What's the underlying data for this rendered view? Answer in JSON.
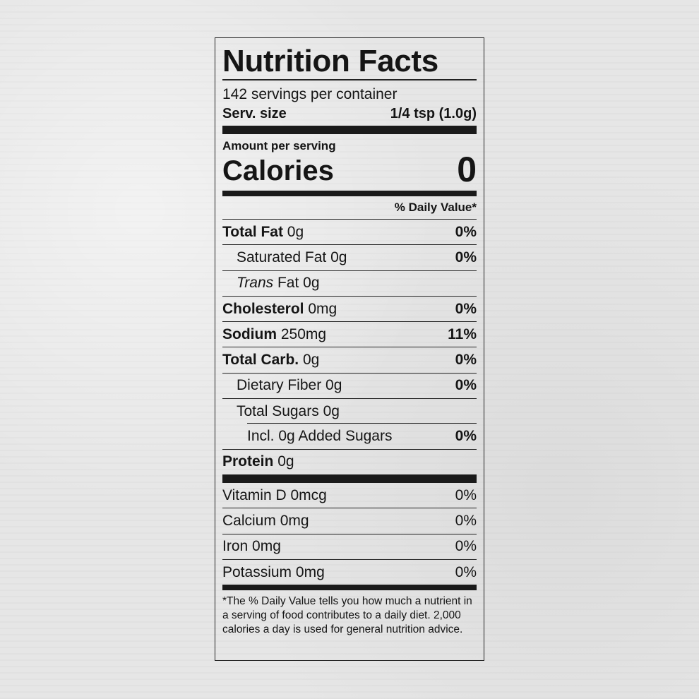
{
  "title": "Nutrition Facts",
  "servings_per_container": "142 servings per container",
  "serving_size": {
    "label": "Serv. size",
    "value": "1/4 tsp (1.0g)"
  },
  "amount_per_serving": "Amount per serving",
  "calories": {
    "label": "Calories",
    "value": "0"
  },
  "daily_value_header": "% Daily Value*",
  "nutrients": [
    {
      "name": "Total Fat",
      "amount": "0g",
      "dv": "0%"
    },
    {
      "name": "Saturated Fat",
      "amount": "0g",
      "dv": "0%"
    },
    {
      "name": "Trans",
      "name_rest": "Fat",
      "amount": "0g",
      "dv": ""
    },
    {
      "name": "Cholesterol",
      "amount": "0mg",
      "dv": "0%"
    },
    {
      "name": "Sodium",
      "amount": "250mg",
      "dv": "11%"
    },
    {
      "name": "Total Carb.",
      "amount": "0g",
      "dv": "0%"
    },
    {
      "name": "Dietary Fiber",
      "amount": "0g",
      "dv": "0%"
    },
    {
      "name": "Total Sugars",
      "amount": "0g",
      "dv": ""
    },
    {
      "name": "Incl. 0g Added Sugars",
      "amount": "",
      "dv": "0%"
    },
    {
      "name": "Protein",
      "amount": "0g",
      "dv": ""
    }
  ],
  "vitamins": [
    {
      "name": "Vitamin D",
      "amount": "0mcg",
      "dv": "0%"
    },
    {
      "name": "Calcium",
      "amount": "0mg",
      "dv": "0%"
    },
    {
      "name": "Iron",
      "amount": "0mg",
      "dv": "0%"
    },
    {
      "name": "Potassium",
      "amount": "0mg",
      "dv": "0%"
    }
  ],
  "footnote": "*The % Daily Value tells you how much a nutrient in a serving of food contributes to a daily diet. 2,000 calories a day is used for general nutrition advice."
}
